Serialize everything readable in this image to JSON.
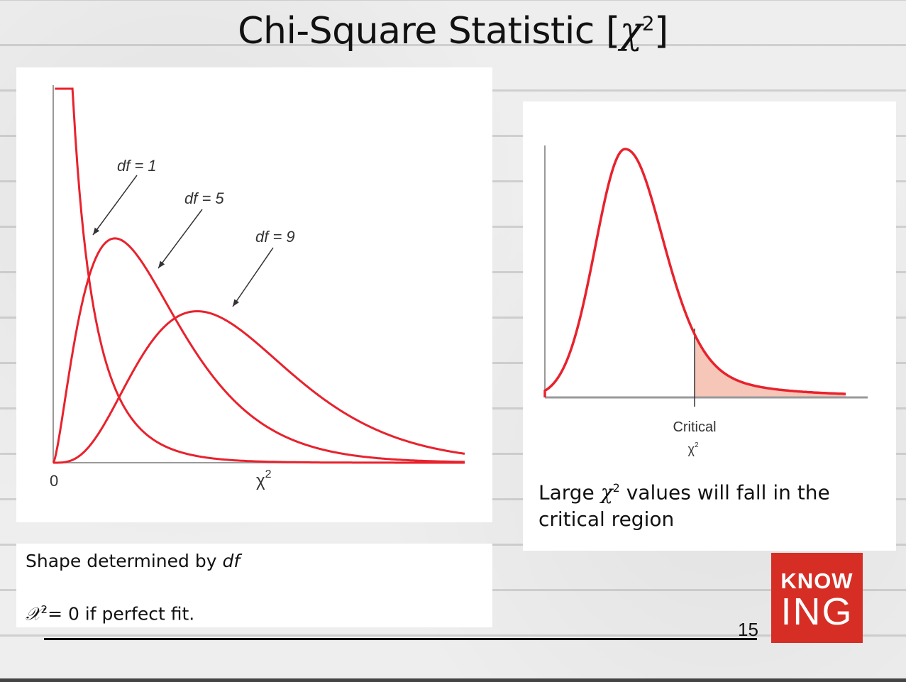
{
  "slide": {
    "title_main": "Chi-Square Statistic [",
    "title_symbol": "𝜒",
    "title_sup": "2",
    "title_end": "]",
    "page_number": "15"
  },
  "left_chart_text": {
    "origin_label": "0",
    "x_axis_label": "χ",
    "x_axis_sup": "2",
    "df_labels": [
      "df = 1",
      "df = 5",
      "df = 9"
    ]
  },
  "right_chart_text": {
    "critical_label": "Critical",
    "critical_symbol": "χ",
    "critical_sup": "2",
    "caption_pre": "Large ",
    "caption_symbol": "𝜒",
    "caption_sup": "2",
    "caption_post": " values will fall in the critical region"
  },
  "notes": {
    "line1_text": "Shape determined by ",
    "line1_em": "df",
    "line2_symbol": "𝒳",
    "line2_sup": "2",
    "line2_text": "= 0 if perfect fit."
  },
  "logo": {
    "line1": "KNOW",
    "line2": "ING"
  },
  "colors": {
    "curve": "#e8222d",
    "shade": "#f6c6b8",
    "axis": "#999999",
    "logo_bg": "#d62e25"
  },
  "chart_data": [
    {
      "type": "line",
      "title": "",
      "xlabel": "χ2",
      "ylabel": "",
      "x_tick_labels": [
        "0"
      ],
      "xlim": [
        0,
        20
      ],
      "series": [
        {
          "name": "df = 1",
          "df": 1
        },
        {
          "name": "df = 5",
          "df": 5
        },
        {
          "name": "df = 9",
          "df": 9
        }
      ],
      "grid": false,
      "legend": "curve annotations with arrows"
    },
    {
      "type": "area",
      "title": "",
      "xlabel": "Critical χ2",
      "series": [
        {
          "shape": "right-skewed chi-square density"
        }
      ],
      "shaded_region": "right tail beyond critical value",
      "grid": false
    }
  ]
}
